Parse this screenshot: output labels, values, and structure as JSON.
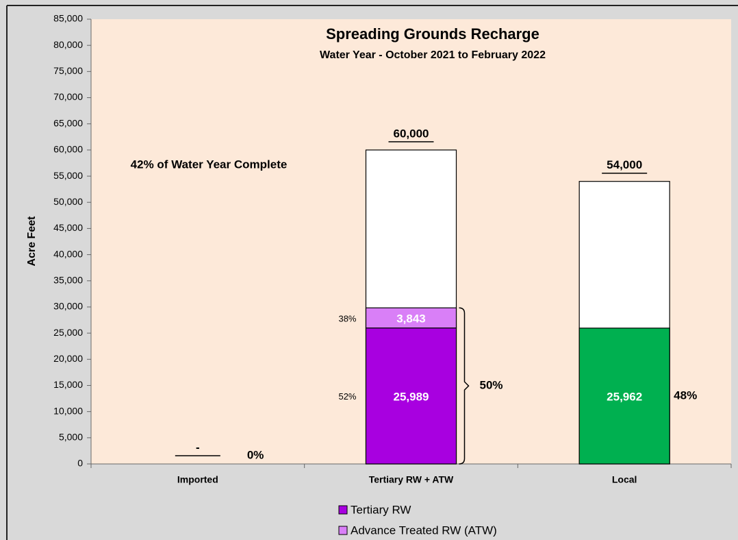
{
  "chart_data": {
    "type": "bar",
    "stacked": true,
    "title": "Spreading Grounds Recharge",
    "subtitle": "Water Year - October 2021 to February 2022",
    "y_label": "Acre Feet",
    "annotation": "42% of Water Year Complete",
    "categories": [
      "Imported",
      "Tertiary RW + ATW",
      "Local"
    ],
    "series": [
      {
        "name": "Tertiary RW",
        "color": "#a800e0",
        "values": [
          null,
          25989,
          null
        ],
        "value_labels": [
          null,
          "25,989",
          null
        ],
        "percents": [
          null,
          52,
          null
        ],
        "percent_labels": [
          null,
          "52%",
          null
        ]
      },
      {
        "name": "Advance Treated RW (ATW)",
        "color": "#d97ff7",
        "values": [
          null,
          3843,
          null
        ],
        "value_labels": [
          null,
          "3,843",
          null
        ],
        "percents": [
          null,
          38,
          null
        ],
        "percent_labels": [
          null,
          "38%",
          null
        ]
      }
    ],
    "other_series": [
      {
        "color": "#00b050",
        "values": [
          null,
          null,
          25962
        ],
        "value_labels": [
          null,
          null,
          "25,962"
        ]
      }
    ],
    "targets": {
      "values": [
        0,
        60000,
        54000
      ],
      "value_labels": [
        "-",
        "60,000",
        "54,000"
      ]
    },
    "progress": {
      "values": [
        0,
        50,
        48
      ],
      "value_labels": [
        "0%",
        "50%",
        "48%"
      ]
    },
    "ylim": [
      0,
      85000
    ],
    "yticks": [
      0,
      {
        "value": 5000,
        "label": "5,000"
      },
      {
        "value": 10000,
        "label": "10,000"
      },
      {
        "value": 15000,
        "label": "15,000"
      },
      {
        "value": 20000,
        "label": "20,000"
      },
      {
        "value": 25000,
        "label": "25,000"
      },
      {
        "value": 30000,
        "label": "30,000"
      },
      {
        "value": 35000,
        "label": "35,000"
      },
      {
        "value": 40000,
        "label": "40,000"
      },
      {
        "value": 45000,
        "label": "45,000"
      },
      {
        "value": 50000,
        "label": "50,000"
      },
      {
        "value": 55000,
        "label": "55,000"
      },
      {
        "value": 60000,
        "label": "60,000"
      },
      {
        "value": 65000,
        "label": "65,000"
      },
      {
        "value": 70000,
        "label": "70,000"
      },
      {
        "value": 75000,
        "label": "75,000"
      },
      {
        "value": 80000,
        "label": "80,000"
      },
      {
        "value": 85000,
        "label": "85,000"
      }
    ],
    "plot_background": "#fde9d9",
    "grid": false
  }
}
